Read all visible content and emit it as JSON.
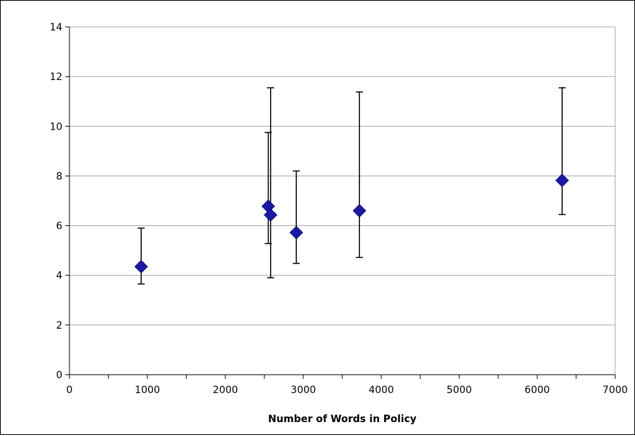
{
  "chart_data": {
    "type": "scatter",
    "title": "",
    "xlabel": "Number of Words in Policy",
    "ylabel": "",
    "xlim": [
      0,
      7000
    ],
    "ylim": [
      0,
      14
    ],
    "x_ticks": [
      "0",
      "1000",
      "2000",
      "3000",
      "4000",
      "5000",
      "6000",
      "7000"
    ],
    "y_ticks": [
      "0",
      "2",
      "4",
      "6",
      "8",
      "10",
      "12",
      "14"
    ],
    "grid": "horizontal",
    "legend": "none",
    "marker": "diamond",
    "series": [
      {
        "marker_color": "#1a1aa6",
        "points": [
          {
            "x": 920,
            "y": 4.35,
            "low": 3.65,
            "high": 5.9
          },
          {
            "x": 2550,
            "y": 6.78,
            "low": 5.28,
            "high": 9.75
          },
          {
            "x": 2580,
            "y": 6.43,
            "low": 3.9,
            "high": 11.55
          },
          {
            "x": 2910,
            "y": 5.72,
            "low": 4.48,
            "high": 8.2
          },
          {
            "x": 3720,
            "y": 6.6,
            "low": 4.72,
            "high": 11.38
          },
          {
            "x": 6320,
            "y": 7.82,
            "low": 6.45,
            "high": 11.55
          }
        ]
      }
    ],
    "colors": {
      "marker": "#1a1aa6",
      "gridline": "#a6a6a6",
      "axis": "#000000",
      "errorbar": "#000000",
      "plot_border": "#a6a6a6"
    }
  }
}
